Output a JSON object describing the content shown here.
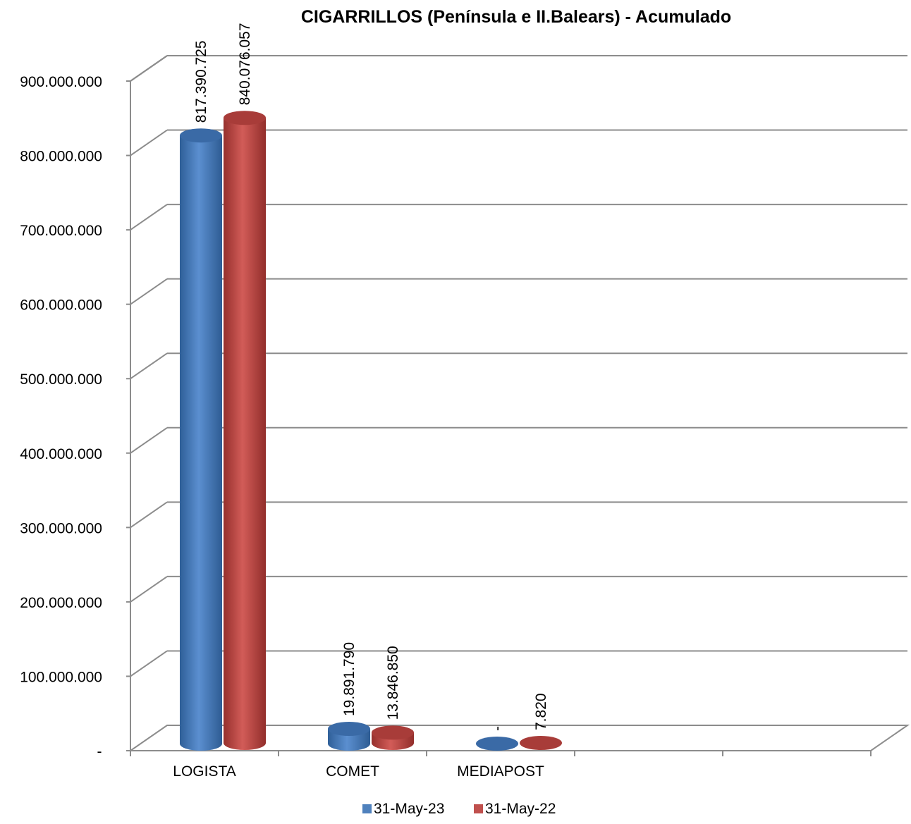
{
  "chart_data": {
    "type": "bar",
    "title": "CIGARRILLOS  (Península e II.Balears) - Acumulado",
    "categories": [
      "LOGISTA",
      "COMET",
      "MEDIAPOST"
    ],
    "series": [
      {
        "name": "31-May-23",
        "color": "#4F81BD",
        "values": [
          817390725,
          19891790,
          0
        ],
        "labels": [
          "817.390.725",
          "19.891.790",
          "-"
        ]
      },
      {
        "name": "31-May-22",
        "color": "#C0504D",
        "values": [
          840076057,
          13846850,
          7820
        ],
        "labels": [
          "840.076.057",
          "13.846.850",
          "7.820"
        ]
      }
    ],
    "ylim": [
      0,
      900000000
    ],
    "yticks": [
      {
        "value": 0,
        "label": "-"
      },
      {
        "value": 100000000,
        "label": "100.000.000"
      },
      {
        "value": 200000000,
        "label": "200.000.000"
      },
      {
        "value": 300000000,
        "label": "300.000.000"
      },
      {
        "value": 400000000,
        "label": "400.000.000"
      },
      {
        "value": 500000000,
        "label": "500.000.000"
      },
      {
        "value": 600000000,
        "label": "600.000.000"
      },
      {
        "value": 700000000,
        "label": "700.000.000"
      },
      {
        "value": 800000000,
        "label": "800.000.000"
      },
      {
        "value": 900000000,
        "label": "900.000.000"
      }
    ],
    "grid": true,
    "legend_position": "bottom",
    "style": "3d-cylinder"
  }
}
